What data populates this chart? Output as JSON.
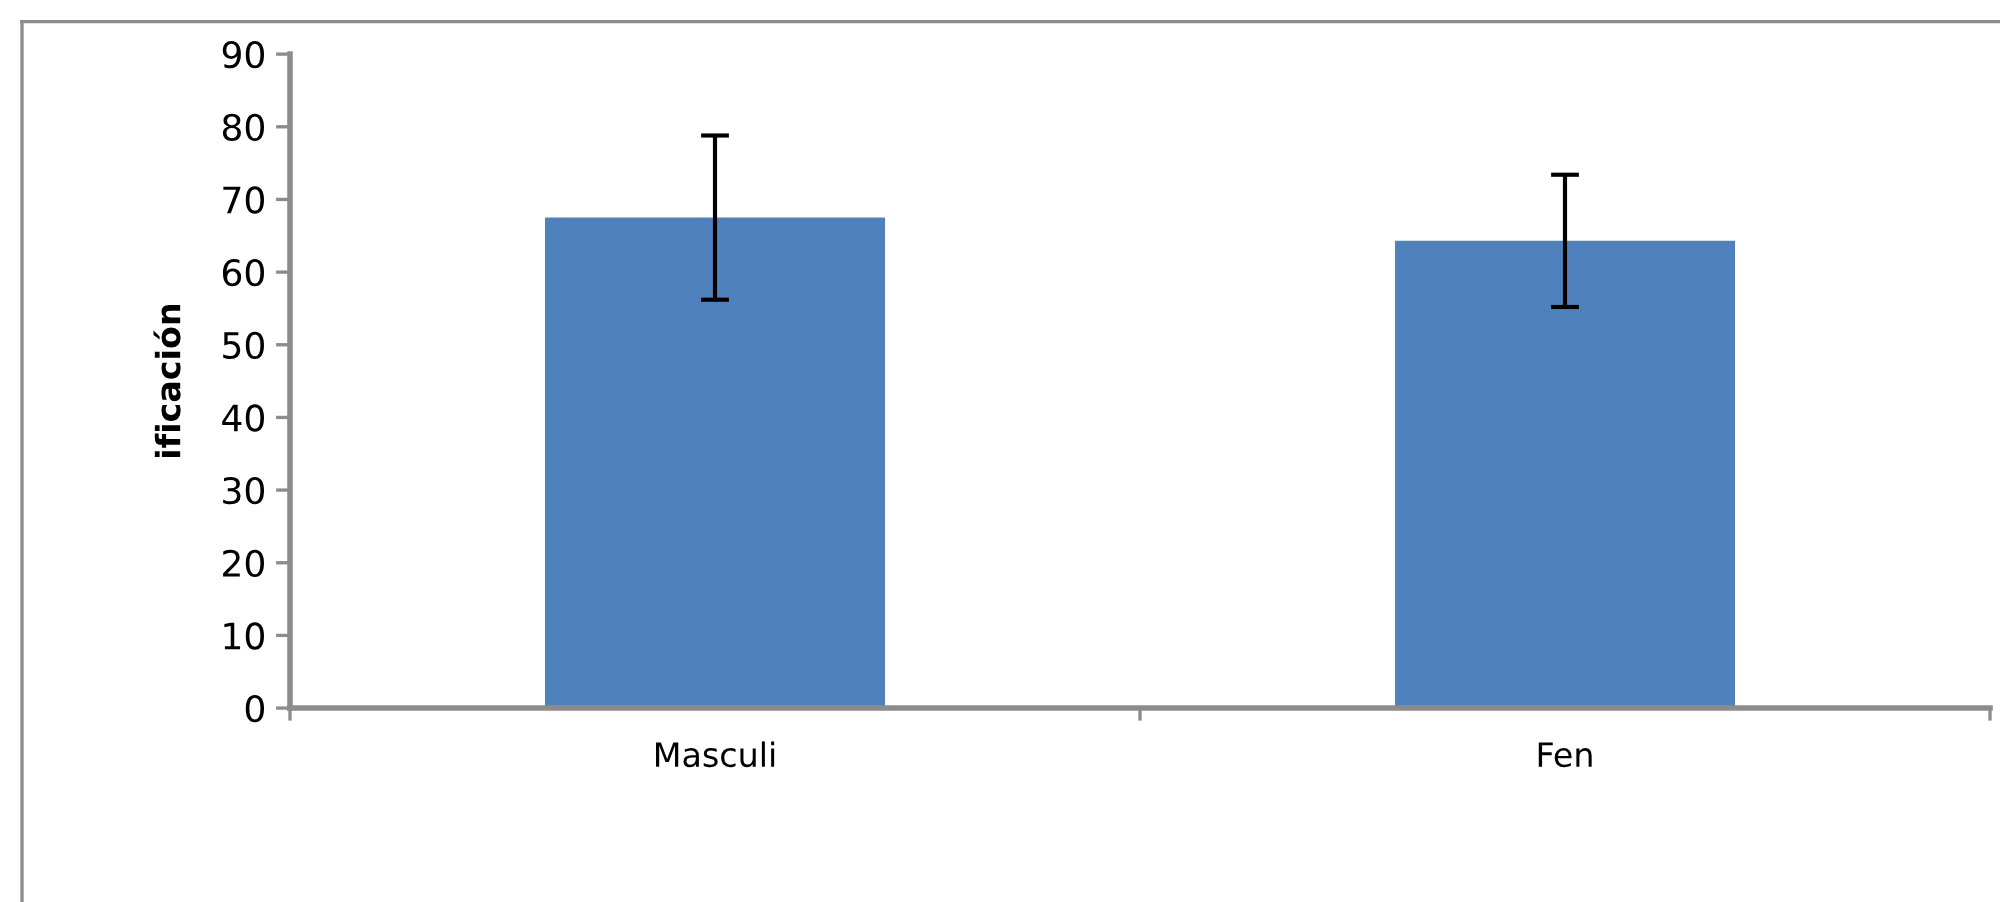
{
  "chart_data": {
    "type": "bar",
    "ylabel": "ificación",
    "categories": [
      "Masculi",
      "Fen"
    ],
    "values": [
      67.5,
      64.3
    ],
    "errors": [
      11.3,
      9.1
    ],
    "color": "#4f81bd",
    "ylim": [
      0,
      90
    ],
    "yticks": [
      0,
      10,
      20,
      30,
      40,
      50,
      60,
      70,
      80,
      90
    ],
    "grid": false
  }
}
